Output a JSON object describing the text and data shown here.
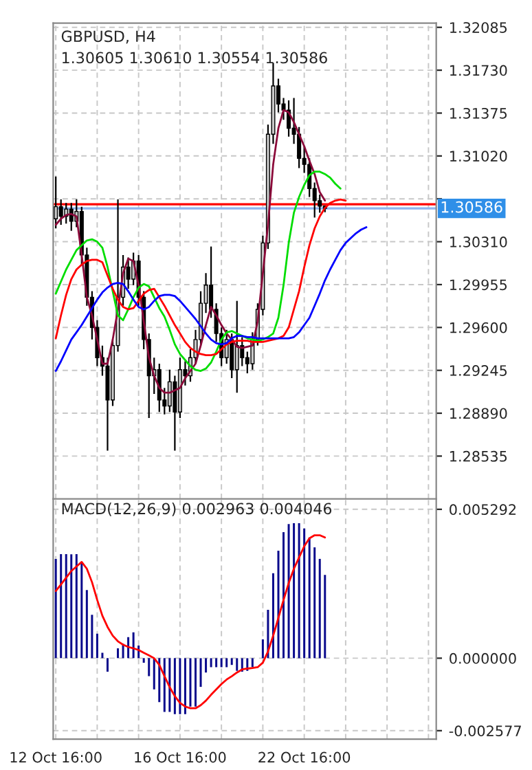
{
  "chart_data": [
    {
      "type": "candlestick",
      "title": "GBPUSD, H4",
      "subtitle": "1.30605 1.30610 1.30554 1.30586",
      "categories": [
        null,
        null,
        null,
        null,
        null,
        null,
        null,
        null,
        null,
        null,
        null,
        null,
        null,
        null,
        null,
        null,
        null,
        null,
        null,
        null,
        null,
        null,
        null,
        null,
        null,
        null,
        null,
        null,
        null,
        null,
        null,
        null,
        null,
        null,
        null,
        null,
        null,
        null,
        null,
        null,
        null,
        null,
        null,
        null,
        null,
        null,
        null,
        null,
        null,
        null,
        null,
        null,
        null,
        null,
        null,
        null,
        null,
        null,
        null,
        null,
        null,
        null,
        null,
        null,
        null,
        null,
        null,
        null,
        null,
        null,
        null,
        null,
        null,
        null
      ],
      "ohlc": [
        [
          1.305,
          1.3085,
          1.3042,
          1.306
        ],
        [
          1.306,
          1.3066,
          1.3045,
          1.3052
        ],
        [
          1.3052,
          1.3063,
          1.3046,
          1.3058
        ],
        [
          1.3058,
          1.3063,
          1.304,
          1.3048
        ],
        [
          1.3048,
          1.3066,
          1.3043,
          1.3056
        ],
        [
          1.3056,
          1.306,
          1.3012,
          1.302
        ],
        [
          1.302,
          1.3026,
          1.2978,
          1.2985
        ],
        [
          1.2985,
          1.299,
          1.295,
          1.296
        ],
        [
          1.296,
          1.2966,
          1.2928,
          1.2935
        ],
        [
          1.2935,
          1.2945,
          1.292,
          1.2928
        ],
        [
          1.2928,
          1.2935,
          1.2858,
          1.29
        ],
        [
          1.29,
          1.295,
          1.2895,
          1.2945
        ],
        [
          1.2945,
          1.3066,
          1.294,
          1.2985
        ],
        [
          1.2985,
          1.302,
          1.2978,
          1.301
        ],
        [
          1.301,
          1.3018,
          1.2992,
          1.3
        ],
        [
          1.3,
          1.3022,
          1.2995,
          1.3015
        ],
        [
          1.3015,
          1.302,
          1.2978,
          1.2985
        ],
        [
          1.2985,
          1.299,
          1.2942,
          1.295
        ],
        [
          1.295,
          1.2955,
          1.2885,
          1.292
        ],
        [
          1.292,
          1.2935,
          1.2905,
          1.2925
        ],
        [
          1.2925,
          1.293,
          1.289,
          1.29
        ],
        [
          1.29,
          1.291,
          1.2888,
          1.2895
        ],
        [
          1.2895,
          1.2925,
          1.289,
          1.2915
        ],
        [
          1.2915,
          1.292,
          1.2858,
          1.289
        ],
        [
          1.289,
          1.2935,
          1.2885,
          1.2925
        ],
        [
          1.2925,
          1.2932,
          1.2912,
          1.292
        ],
        [
          1.292,
          1.2942,
          1.2915,
          1.2935
        ],
        [
          1.2935,
          1.2958,
          1.293,
          1.295
        ],
        [
          1.295,
          1.299,
          1.2945,
          1.298
        ],
        [
          1.298,
          1.3005,
          1.2972,
          1.2995
        ],
        [
          1.2995,
          1.3027,
          1.2968,
          1.2975
        ],
        [
          1.2975,
          1.298,
          1.2948,
          1.2955
        ],
        [
          1.2955,
          1.296,
          1.2928,
          1.2935
        ],
        [
          1.2935,
          1.2958,
          1.293,
          1.295
        ],
        [
          1.295,
          1.2955,
          1.2918,
          1.2925
        ],
        [
          1.2925,
          1.2982,
          1.2906,
          1.2945
        ],
        [
          1.2945,
          1.2952,
          1.2928,
          1.2935
        ],
        [
          1.2935,
          1.294,
          1.2922,
          1.293
        ],
        [
          1.293,
          1.2956,
          1.2925,
          1.295
        ],
        [
          1.295,
          1.298,
          1.2945,
          1.2975
        ],
        [
          1.2975,
          1.3036,
          1.297,
          1.303
        ],
        [
          1.303,
          1.3128,
          1.3025,
          1.312
        ],
        [
          1.312,
          1.3179,
          1.3112,
          1.316
        ],
        [
          1.316,
          1.3166,
          1.3138,
          1.3145
        ],
        [
          1.3145,
          1.315,
          1.3132,
          1.314
        ],
        [
          1.314,
          1.3148,
          1.3118,
          1.3125
        ],
        [
          1.3125,
          1.315,
          1.3112,
          1.312
        ],
        [
          1.312,
          1.3126,
          1.3092,
          1.31
        ],
        [
          1.31,
          1.311,
          1.3088,
          1.3095
        ],
        [
          1.3095,
          1.31,
          1.3068,
          1.3075
        ],
        [
          1.3075,
          1.308,
          1.3051,
          1.3065
        ],
        [
          1.3065,
          1.307,
          1.3055,
          1.30605
        ],
        [
          1.30605,
          1.3061,
          1.30554,
          1.30586
        ],
        null,
        null,
        null,
        null,
        null,
        null,
        null,
        null,
        null,
        null,
        null,
        null,
        null,
        null,
        null,
        null,
        null,
        null,
        null,
        null,
        null
      ],
      "series": [
        {
          "type": "line",
          "color": "#8b0a3a",
          "values": [
            1.3045,
            1.305,
            1.3053,
            1.3054,
            1.3052,
            1.302,
            1.2985,
            1.297,
            1.295,
            1.293,
            1.293,
            1.295,
            1.2975,
            1.3005,
            1.3017,
            1.3015,
            1.2995,
            1.2965,
            1.2935,
            1.292,
            1.291,
            1.2906,
            1.2906,
            1.2908,
            1.291,
            1.2918,
            1.2924,
            1.293,
            1.2945,
            1.2962,
            1.2977,
            1.297,
            1.2962,
            1.2955,
            1.295,
            1.2944,
            1.2943,
            1.2944,
            1.2945,
            1.2965,
            1.3005,
            1.3045,
            1.3095,
            1.3125,
            1.314,
            1.3138,
            1.313,
            1.312,
            1.311,
            1.3098,
            1.3087,
            1.3072,
            1.3065,
            null,
            null,
            null,
            null,
            null,
            null,
            null,
            null,
            null,
            null,
            null,
            null,
            null,
            null,
            null,
            null,
            null,
            null,
            null,
            null,
            null
          ]
        },
        {
          "type": "line",
          "color": "#00dd00",
          "values": [
            1.2988,
            1.2998,
            1.3008,
            1.3016,
            1.3024,
            1.3028,
            1.3032,
            1.3033,
            1.3031,
            1.3026,
            1.301,
            1.299,
            1.297,
            1.2966,
            1.2975,
            1.2985,
            1.2993,
            1.2996,
            1.2994,
            1.2985,
            1.2976,
            1.2969,
            1.2958,
            1.2946,
            1.2938,
            1.2933,
            1.2928,
            1.2925,
            1.2924,
            1.2926,
            1.2931,
            1.294,
            1.295,
            1.2956,
            1.2957,
            1.2955,
            1.2953,
            1.2951,
            1.295,
            1.2949,
            1.295,
            1.2952,
            1.2955,
            1.2968,
            1.2995,
            1.303,
            1.3055,
            1.3068,
            1.3078,
            1.3086,
            1.3089,
            1.3089,
            1.3087,
            1.3084,
            1.3079,
            1.3075,
            null,
            null,
            null,
            null,
            null,
            null,
            null,
            null,
            null,
            null,
            null,
            null,
            null,
            null,
            null,
            null,
            null,
            null
          ]
        },
        {
          "type": "line",
          "color": "#ff0000",
          "values": [
            1.2951,
            1.297,
            1.2987,
            1.3,
            1.3008,
            1.3012,
            1.3015,
            1.3016,
            1.3016,
            1.3014,
            1.3003,
            1.2992,
            1.2983,
            1.2977,
            1.2975,
            1.2976,
            1.2982,
            1.2988,
            1.2991,
            1.2992,
            1.2985,
            1.2978,
            1.297,
            1.2962,
            1.2955,
            1.2948,
            1.2943,
            1.294,
            1.2938,
            1.2937,
            1.2937,
            1.2938,
            1.2942,
            1.2946,
            1.2948,
            1.2949,
            1.2949,
            1.2949,
            1.2948,
            1.2948,
            1.2948,
            1.2949,
            1.295,
            1.2951,
            1.2953,
            1.296,
            1.2975,
            1.299,
            1.301,
            1.3028,
            1.3042,
            1.3052,
            1.3059,
            1.3063,
            1.3065,
            1.3066,
            1.3065,
            null,
            null,
            null,
            null,
            null,
            null,
            null,
            null,
            null,
            null,
            null,
            null,
            null,
            null,
            null,
            null,
            null
          ]
        },
        {
          "type": "line",
          "color": "#0000ff",
          "values": [
            1.2924,
            1.2932,
            1.2941,
            1.295,
            1.2956,
            1.2962,
            1.2969,
            1.2976,
            1.2983,
            1.2989,
            1.2993,
            1.2996,
            1.2997,
            1.2996,
            1.299,
            1.2983,
            1.2977,
            1.2975,
            1.2977,
            1.2982,
            1.2986,
            1.2987,
            1.2987,
            1.2986,
            1.2982,
            1.2977,
            1.2972,
            1.2967,
            1.2961,
            1.2955,
            1.295,
            1.2947,
            1.2946,
            1.2947,
            1.2951,
            1.2953,
            1.2953,
            1.2952,
            1.2952,
            1.2951,
            1.2951,
            1.2951,
            1.2951,
            1.2951,
            1.2951,
            1.2951,
            1.2952,
            1.2956,
            1.2962,
            1.2968,
            1.2978,
            1.2988,
            1.2999,
            1.3008,
            1.3016,
            1.3024,
            1.303,
            1.3034,
            1.3038,
            1.3041,
            1.3043,
            null,
            null,
            null,
            null,
            null,
            null,
            null,
            null,
            null,
            null,
            null,
            null,
            null
          ]
        }
      ],
      "ylim": [
        1.2818,
        1.3212
      ],
      "yticks": [
        {
          "value": 1.28535,
          "label": "1.28535"
        },
        {
          "value": 1.2889,
          "label": "1.28890"
        },
        {
          "value": 1.29245,
          "label": "1.29245"
        },
        {
          "value": 1.296,
          "label": "1.29600"
        },
        {
          "value": 1.29955,
          "label": "1.29955"
        },
        {
          "value": 1.3031,
          "label": "1.30310"
        },
        {
          "value": 1.30665,
          "label": null
        },
        {
          "value": 1.3102,
          "label": "1.31020"
        },
        {
          "value": 1.31375,
          "label": "1.31375"
        },
        {
          "value": 1.3173,
          "label": "1.31730"
        },
        {
          "value": 1.32085,
          "label": "1.32085"
        }
      ],
      "ref_lines": [
        {
          "axis": "y",
          "value": 1.3062,
          "color": "#ff0000"
        },
        {
          "axis": "y",
          "value": 1.30586,
          "label": "1.30586",
          "color": "#8fb4f0"
        }
      ],
      "grid": true,
      "tick_labels": "y"
    },
    {
      "type": "bar",
      "title": "MACD(12,26,9) 0.002963 0.004046",
      "categories": [
        "12 Oct 16:00",
        null,
        null,
        null,
        null,
        null,
        null,
        null,
        null,
        null,
        null,
        null,
        null,
        null,
        null,
        null,
        null,
        null,
        null,
        null,
        null,
        null,
        null,
        null,
        "16 Oct 16:00",
        null,
        null,
        null,
        null,
        null,
        null,
        null,
        null,
        null,
        null,
        null,
        null,
        null,
        null,
        null,
        null,
        null,
        null,
        null,
        null,
        null,
        null,
        null,
        "22 Oct 16:00",
        null,
        null,
        null,
        null,
        null,
        null,
        null,
        null,
        null,
        null,
        null,
        null,
        null,
        null,
        null,
        null,
        null,
        null,
        null,
        null,
        null,
        null,
        null,
        null,
        null
      ],
      "series": [
        {
          "type": "bar",
          "color": "#0a0a8c",
          "values": [
            0.00353,
            0.0037,
            0.0037,
            0.00369,
            0.0037,
            0.00342,
            0.00242,
            0.00154,
            0.00087,
            0.00019,
            -0.00048,
            0.0,
            0.00035,
            0.00051,
            0.00075,
            0.00092,
            0.00045,
            -0.00016,
            -0.00064,
            -0.00111,
            -0.00156,
            -0.00191,
            -0.00191,
            -0.00199,
            -0.00199,
            -0.00199,
            -0.00172,
            -0.00172,
            -0.00102,
            -0.00051,
            -0.00032,
            -0.00032,
            -0.00032,
            -0.00032,
            -0.00024,
            -0.00045,
            -0.00048,
            -0.00045,
            -0.00032,
            0.0,
            0.00067,
            0.00172,
            0.00302,
            0.00382,
            0.00448,
            0.00477,
            0.0048,
            0.0048,
            0.00461,
            0.00429,
            0.00394,
            0.00353,
            0.00296,
            null,
            null,
            null,
            null,
            null,
            null,
            null,
            null,
            null,
            null,
            null,
            null,
            null,
            null,
            null,
            null,
            null,
            null,
            null,
            null,
            null
          ]
        },
        {
          "type": "line",
          "color": "#ff0000",
          "values": [
            0.00239,
            0.00262,
            0.00286,
            0.0031,
            0.00326,
            0.00342,
            0.00318,
            0.0027,
            0.00207,
            0.00151,
            0.00111,
            0.0008,
            0.0006,
            0.00048,
            0.0004,
            0.00035,
            0.00029,
            0.00019,
            0.0001,
            0.0,
            -0.00024,
            -0.00064,
            -0.00103,
            -0.00135,
            -0.00159,
            -0.00172,
            -0.00178,
            -0.00178,
            -0.00167,
            -0.00151,
            -0.0013,
            -0.00111,
            -0.00092,
            -0.00076,
            -0.00064,
            -0.00051,
            -0.0004,
            -0.00037,
            -0.00035,
            -0.00032,
            -0.00016,
            0.00024,
            0.0008,
            0.00143,
            0.00207,
            0.00267,
            0.00318,
            0.00358,
            0.00398,
            0.00426,
            0.00437,
            0.00437,
            0.00429,
            null,
            null,
            null,
            null,
            null,
            null,
            null,
            null,
            null,
            null,
            null,
            null,
            null,
            null,
            null,
            null,
            null,
            null,
            null,
            null,
            null
          ]
        }
      ],
      "ylim": [
        -0.00288,
        0.00566
      ],
      "yticks": [
        {
          "value": -0.002577,
          "label": "-0.002577"
        },
        {
          "value": 0,
          "label": "0.000000"
        },
        {
          "value": 0.005292,
          "label": "0.005292"
        }
      ],
      "grid": true
    }
  ]
}
